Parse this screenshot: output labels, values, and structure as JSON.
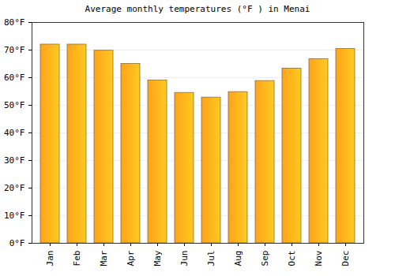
{
  "chart_data": {
    "type": "bar",
    "title": "Average monthly temperatures (°F ) in Menai",
    "categories": [
      "Jan",
      "Feb",
      "Mar",
      "Apr",
      "May",
      "Jun",
      "Jul",
      "Aug",
      "Sep",
      "Oct",
      "Nov",
      "Dec"
    ],
    "values": [
      72,
      72,
      69.8,
      65,
      59,
      54.5,
      52.8,
      54.8,
      58.8,
      63.3,
      66.7,
      70.4
    ],
    "color": "#ffa31a",
    "ylim": [
      0,
      80
    ],
    "yticks": [
      {
        "value": 0,
        "label": "0°F"
      },
      {
        "value": 10,
        "label": "10°F"
      },
      {
        "value": 20,
        "label": "20°F"
      },
      {
        "value": 30,
        "label": "30°F"
      },
      {
        "value": 40,
        "label": "40°F"
      },
      {
        "value": 50,
        "label": "50°F"
      },
      {
        "value": 60,
        "label": "60°F"
      },
      {
        "value": 70,
        "label": "70°F"
      },
      {
        "value": 80,
        "label": "80°F"
      }
    ],
    "grid": true
  }
}
